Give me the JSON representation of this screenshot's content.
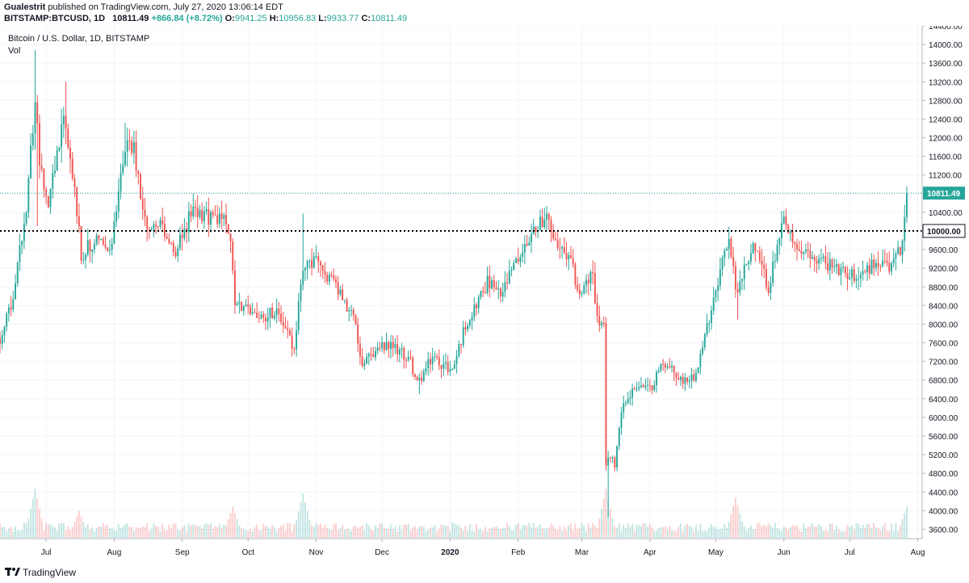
{
  "header": {
    "author": "Gualestrit",
    "published_text": "published on TradingView.com, July 27, 2020 13:06:14 EDT",
    "symbol": "BITSTAMP:BTCUSD, 1D",
    "last": "10811.49",
    "change": "+866.84 (+8.72%)",
    "o_label": "O:",
    "o_value": "9941.25",
    "h_label": "H:",
    "h_value": "10956.83",
    "l_label": "L:",
    "l_value": "9933.77",
    "c_label": "C:",
    "c_value": "10811.49"
  },
  "footer": {
    "brand": "TradingView"
  },
  "colors": {
    "up": "#26a69a",
    "down": "#ef5350",
    "grid": "#f0f3fa",
    "accent_label": "#26a69a"
  },
  "chart_data": {
    "type": "candlestick",
    "title": "Bitcoin / U.S. Dollar, 1D, BITSTAMP",
    "subtitle": "Vol",
    "ylim": [
      3400,
      14400
    ],
    "y_ticks": [
      3600,
      4000,
      4400,
      4800,
      5200,
      5600,
      6000,
      6400,
      6800,
      7200,
      7600,
      8000,
      8400,
      8800,
      9200,
      9600,
      10000,
      10400,
      10800,
      11200,
      11600,
      12000,
      12400,
      12800,
      13200,
      13600,
      14000,
      14400
    ],
    "y_tick_labels": [
      "3600.00",
      "4000.00",
      "4400.00",
      "4800.00",
      "5200.00",
      "5600.00",
      "6000.00",
      "6400.00",
      "6800.00",
      "7200.00",
      "7600.00",
      "8000.00",
      "8400.00",
      "8800.00",
      "9200.00",
      "9600.00",
      "10000.00",
      "10400.00",
      "10800.00",
      "11200.00",
      "11600.00",
      "12000.00",
      "12400.00",
      "12800.00",
      "13200.00",
      "13600.00",
      "14000.00",
      "14400.00"
    ],
    "x_ticks": [
      {
        "label": "Jul",
        "date": "2019-07-01"
      },
      {
        "label": "Aug",
        "date": "2019-08-01"
      },
      {
        "label": "Sep",
        "date": "2019-09-01"
      },
      {
        "label": "Oct",
        "date": "2019-10-01"
      },
      {
        "label": "Nov",
        "date": "2019-11-01"
      },
      {
        "label": "Dec",
        "date": "2019-12-01"
      },
      {
        "label": "2020",
        "date": "2020-01-01"
      },
      {
        "label": "Feb",
        "date": "2020-02-01"
      },
      {
        "label": "Mar",
        "date": "2020-03-01"
      },
      {
        "label": "Apr",
        "date": "2020-04-01"
      },
      {
        "label": "May",
        "date": "2020-05-01"
      },
      {
        "label": "Jun",
        "date": "2020-06-01"
      },
      {
        "label": "Jul",
        "date": "2020-07-01"
      },
      {
        "label": "Aug",
        "date": "2020-08-01"
      }
    ],
    "x_range": [
      "2019-06-10",
      "2020-08-03"
    ],
    "price_trend": [
      [
        "2019-06-10",
        7700
      ],
      [
        "2019-06-16",
        8600
      ],
      [
        "2019-06-22",
        10500
      ],
      [
        "2019-06-26",
        12900
      ],
      [
        "2019-06-28",
        11500
      ],
      [
        "2019-07-02",
        10600
      ],
      [
        "2019-07-09",
        12500
      ],
      [
        "2019-07-14",
        11000
      ],
      [
        "2019-07-17",
        9500
      ],
      [
        "2019-07-23",
        9800
      ],
      [
        "2019-07-31",
        9700
      ],
      [
        "2019-08-06",
        11800
      ],
      [
        "2019-08-10",
        11800
      ],
      [
        "2019-08-15",
        10200
      ],
      [
        "2019-08-22",
        10100
      ],
      [
        "2019-08-29",
        9500
      ],
      [
        "2019-09-05",
        10400
      ],
      [
        "2019-09-14",
        10300
      ],
      [
        "2019-09-20",
        10200
      ],
      [
        "2019-09-23",
        9700
      ],
      [
        "2019-09-25",
        8500
      ],
      [
        "2019-10-05",
        8100
      ],
      [
        "2019-10-14",
        8300
      ],
      [
        "2019-10-22",
        7450
      ],
      [
        "2019-10-26",
        9300
      ],
      [
        "2019-11-02",
        9300
      ],
      [
        "2019-11-10",
        8800
      ],
      [
        "2019-11-18",
        8100
      ],
      [
        "2019-11-22",
        7200
      ],
      [
        "2019-11-30",
        7500
      ],
      [
        "2019-12-07",
        7500
      ],
      [
        "2019-12-14",
        7200
      ],
      [
        "2019-12-17",
        6700
      ],
      [
        "2019-12-24",
        7300
      ],
      [
        "2020-01-02",
        7000
      ],
      [
        "2020-01-08",
        8000
      ],
      [
        "2020-01-18",
        8900
      ],
      [
        "2020-01-24",
        8600
      ],
      [
        "2020-02-01",
        9400
      ],
      [
        "2020-02-09",
        10100
      ],
      [
        "2020-02-13",
        10300
      ],
      [
        "2020-02-20",
        9600
      ],
      [
        "2020-02-25",
        9300
      ],
      [
        "2020-02-29",
        8600
      ],
      [
        "2020-03-06",
        9100
      ],
      [
        "2020-03-08",
        8100
      ],
      [
        "2020-03-11",
        7900
      ],
      [
        "2020-03-12",
        4900
      ],
      [
        "2020-03-13",
        5200
      ],
      [
        "2020-03-16",
        5000
      ],
      [
        "2020-03-19",
        6200
      ],
      [
        "2020-03-26",
        6700
      ],
      [
        "2020-04-01",
        6600
      ],
      [
        "2020-04-07",
        7200
      ],
      [
        "2020-04-15",
        6800
      ],
      [
        "2020-04-21",
        6900
      ],
      [
        "2020-04-25",
        7500
      ],
      [
        "2020-04-30",
        8600
      ],
      [
        "2020-05-07",
        9900
      ],
      [
        "2020-05-10",
        8700
      ],
      [
        "2020-05-18",
        9700
      ],
      [
        "2020-05-25",
        8800
      ],
      [
        "2020-06-01",
        10200
      ],
      [
        "2020-06-05",
        9700
      ],
      [
        "2020-06-12",
        9450
      ],
      [
        "2020-06-20",
        9350
      ],
      [
        "2020-06-27",
        9100
      ],
      [
        "2020-07-05",
        9050
      ],
      [
        "2020-07-12",
        9300
      ],
      [
        "2020-07-19",
        9200
      ],
      [
        "2020-07-22",
        9500
      ],
      [
        "2020-07-25",
        9700
      ],
      [
        "2020-07-27",
        10811
      ]
    ],
    "lows": [
      [
        "2019-06-27",
        10100
      ],
      [
        "2019-08-29",
        9400
      ],
      [
        "2019-10-23",
        7300
      ],
      [
        "2019-12-18",
        6500
      ],
      [
        "2020-03-13",
        3860
      ],
      [
        "2020-05-11",
        8100
      ]
    ],
    "highs": [
      [
        "2019-06-26",
        13880
      ],
      [
        "2019-07-10",
        13200
      ],
      [
        "2019-08-06",
        12320
      ],
      [
        "2019-10-26",
        10370
      ],
      [
        "2020-02-13",
        10500
      ],
      [
        "2020-06-01",
        10430
      ],
      [
        "2020-07-27",
        10956
      ]
    ],
    "volume_peaks": [
      [
        "2019-06-26",
        0.55
      ],
      [
        "2019-07-16",
        0.3
      ],
      [
        "2019-09-24",
        0.35
      ],
      [
        "2019-10-26",
        0.5
      ],
      [
        "2020-03-12",
        0.55
      ],
      [
        "2020-05-10",
        0.45
      ],
      [
        "2020-07-27",
        0.35
      ]
    ],
    "horizontal_lines": [
      {
        "value": 10811.49,
        "label": "10811.49",
        "style": "dotted",
        "color": "#26a69a"
      },
      {
        "value": 10000.0,
        "label": "10000.00",
        "style": "dotted",
        "color": "#000000"
      }
    ],
    "grid": true
  }
}
